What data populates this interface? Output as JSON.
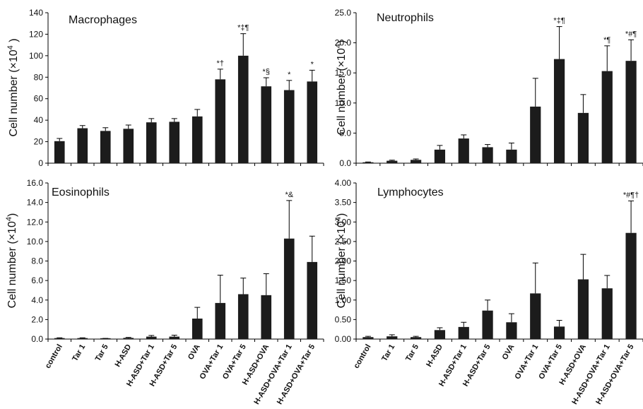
{
  "categories": [
    "control",
    "Tar 1",
    "Tar 5",
    "H-ASD",
    "H-ASD+Tar 1",
    "H-ASD+Tar 5",
    "OVA",
    "OVA+Tar 1",
    "OVA+Tar 5",
    "H-ASD+OVA",
    "H-ASD+OVA+Tar 1",
    "H-ASD+OVA+Tar 5"
  ],
  "colors": {
    "bar": "#1c1c1c",
    "axis": "#000000",
    "text": "#111111"
  },
  "chart_data": [
    {
      "type": "bar",
      "title": "Macrophages",
      "ylabel_main": "Cell number",
      "ylabel_unit": "(×10",
      "ylabel_exp": "4",
      "ylabel_close": " )",
      "ylim": [
        0,
        140
      ],
      "yticks": [
        "0",
        "20",
        "40",
        "60",
        "80",
        "100",
        "120",
        "140"
      ],
      "categories": [
        "control",
        "Tar 1",
        "Tar 5",
        "H-ASD",
        "H-ASD+Tar 1",
        "H-ASD+Tar 5",
        "OVA",
        "OVA+Tar 1",
        "OVA+Tar 5",
        "H-ASD+OVA",
        "H-ASD+OVA+Tar 1",
        "H-ASD+OVA+Tar 5"
      ],
      "values": [
        20.5,
        32.5,
        30,
        32,
        38,
        38.5,
        43.5,
        78,
        100,
        71.5,
        68,
        76
      ],
      "errors": [
        2.5,
        2.5,
        3,
        3.5,
        3.5,
        3,
        6.5,
        9.5,
        20.5,
        8,
        9,
        10.5
      ],
      "annotations": [
        "",
        "",
        "",
        "",
        "",
        "",
        "",
        "*†",
        "*‡¶",
        "*§",
        "*",
        "*"
      ]
    },
    {
      "type": "bar",
      "title": "Neutrophils",
      "ylabel_main": "Cell number",
      "ylabel_unit": "(×10",
      "ylabel_exp": "4",
      "ylabel_close": ")",
      "ylim": [
        0,
        25
      ],
      "yticks": [
        "0.0",
        "5.0",
        "10.0",
        "15.0",
        "20.0",
        "25.0"
      ],
      "categories": [
        "control",
        "Tar 1",
        "Tar 5",
        "H-ASD",
        "H-ASD+Tar 1",
        "H-ASD+Tar 5",
        "OVA",
        "OVA+Tar 1",
        "OVA+Tar 5",
        "H-ASD+OVA",
        "H-ASD+OVA+Tar 1",
        "H-ASD+OVA+Tar 5"
      ],
      "values": [
        0.15,
        0.4,
        0.55,
        2.25,
        4.1,
        2.65,
        2.25,
        9.4,
        17.3,
        8.35,
        15.3,
        17
      ],
      "errors": [
        0.05,
        0.1,
        0.15,
        0.7,
        0.6,
        0.45,
        1.1,
        4.7,
        5.4,
        3.05,
        4.2,
        3.5
      ],
      "annotations": [
        "",
        "",
        "",
        "",
        "",
        "",
        "",
        "",
        "*‡¶",
        "",
        "*¶",
        "*#¶"
      ]
    },
    {
      "type": "bar",
      "title": "Eosinophils",
      "ylabel_main": "Cell number",
      "ylabel_unit": "(×10",
      "ylabel_exp": "4",
      "ylabel_close": ")",
      "ylim": [
        0,
        16
      ],
      "yticks": [
        "0.0",
        "2.0",
        "4.0",
        "6.0",
        "8.0",
        "10.0",
        "12.0",
        "14.0",
        "16.0"
      ],
      "categories": [
        "control",
        "Tar 1",
        "Tar 5",
        "H-ASD",
        "H-ASD+Tar 1",
        "H-ASD+Tar 5",
        "OVA",
        "OVA+Tar 1",
        "OVA+Tar 5",
        "H-ASD+OVA",
        "H-ASD+OVA+Tar 1",
        "H-ASD+OVA+Tar 5"
      ],
      "values": [
        0.1,
        0.1,
        0.05,
        0.12,
        0.25,
        0.25,
        2.1,
        3.7,
        4.6,
        4.5,
        10.3,
        7.9
      ],
      "errors": [
        0.03,
        0.03,
        0.02,
        0.05,
        0.12,
        0.15,
        1.15,
        2.85,
        1.65,
        2.2,
        3.9,
        2.65
      ],
      "annotations": [
        "",
        "",
        "",
        "",
        "",
        "",
        "",
        "",
        "",
        "",
        "*&",
        ""
      ]
    },
    {
      "type": "bar",
      "title": "Lymphocytes",
      "ylabel_main": "Cell number",
      "ylabel_unit": "(×10",
      "ylabel_exp": "4",
      "ylabel_close": ")",
      "ylim": [
        0,
        4
      ],
      "yticks": [
        "0.00",
        "0.50",
        "1.00",
        "1.50",
        "2.00",
        "2.50",
        "3.00",
        "3.50",
        "4.00"
      ],
      "categories": [
        "control",
        "Tar 1",
        "Tar 5",
        "H-ASD",
        "H-ASD+Tar 1",
        "H-ASD+Tar 5",
        "OVA",
        "OVA+Tar 1",
        "OVA+Tar 5",
        "H-ASD+OVA",
        "H-ASD+OVA+Tar 1",
        "H-ASD+OVA+Tar 5"
      ],
      "values": [
        0.05,
        0.07,
        0.05,
        0.23,
        0.31,
        0.73,
        0.43,
        1.17,
        0.32,
        1.53,
        1.3,
        2.72
      ],
      "errors": [
        0.02,
        0.04,
        0.02,
        0.06,
        0.12,
        0.27,
        0.22,
        0.78,
        0.16,
        0.64,
        0.33,
        0.82
      ],
      "annotations": [
        "",
        "",
        "",
        "",
        "",
        "",
        "",
        "",
        "",
        "",
        "",
        "*#¶†"
      ]
    }
  ]
}
